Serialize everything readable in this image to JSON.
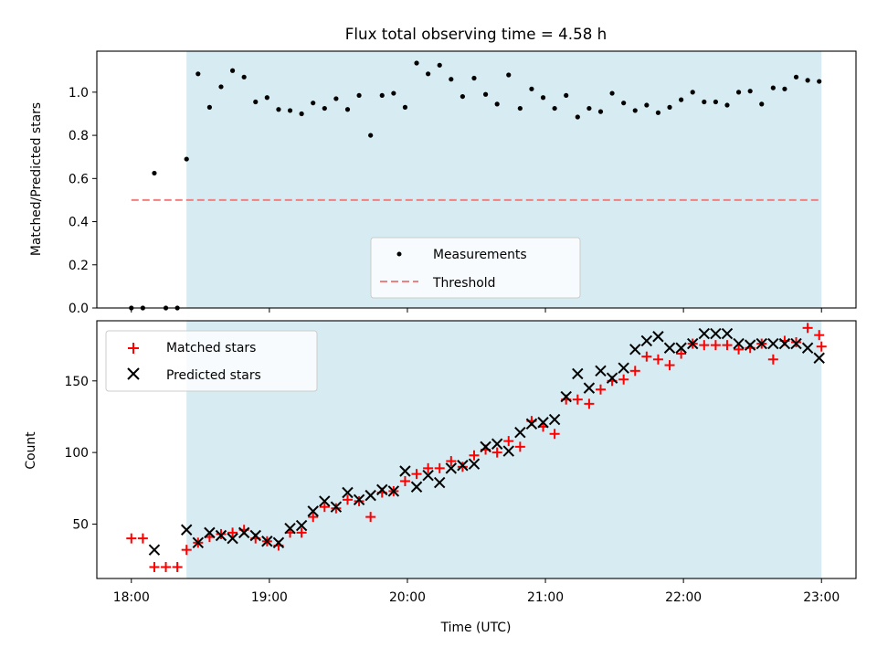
{
  "chart_data": [
    {
      "panel": "top",
      "type": "scatter",
      "title": "Flux total observing time = 4.58 h",
      "xlabel": "",
      "ylabel": "Matched/Predicted stars",
      "ylim": [
        0,
        1.19
      ],
      "yticks": [
        "0.0",
        "0.2",
        "0.4",
        "0.6",
        "0.8",
        "1.0"
      ],
      "legend": {
        "position": "lower-center",
        "entries": [
          "Measurements",
          "Threshold"
        ]
      },
      "shaded_interval": [
        "18:24",
        "23:00"
      ],
      "shade_color": "#add8e6",
      "threshold": {
        "name": "Threshold",
        "y": 0.5,
        "x_range": [
          "18:00",
          "23:00"
        ],
        "color": "#f08080"
      },
      "series": [
        {
          "name": "Measurements",
          "color": "#000000",
          "points": [
            [
              "18:00",
              0.0
            ],
            [
              "18:05",
              0.0
            ],
            [
              "18:10",
              0.625
            ],
            [
              "18:15",
              0.0
            ],
            [
              "18:20",
              0.0
            ],
            [
              "18:24",
              0.69
            ],
            [
              "18:29",
              1.085
            ],
            [
              "18:34",
              0.93
            ],
            [
              "18:39",
              1.025
            ],
            [
              "18:44",
              1.1
            ],
            [
              "18:49",
              1.07
            ],
            [
              "18:54",
              0.955
            ],
            [
              "18:59",
              0.975
            ],
            [
              "19:04",
              0.92
            ],
            [
              "19:09",
              0.915
            ],
            [
              "19:14",
              0.9
            ],
            [
              "19:19",
              0.95
            ],
            [
              "19:24",
              0.925
            ],
            [
              "19:29",
              0.97
            ],
            [
              "19:34",
              0.92
            ],
            [
              "19:39",
              0.985
            ],
            [
              "19:44",
              0.8
            ],
            [
              "19:49",
              0.985
            ],
            [
              "19:54",
              0.995
            ],
            [
              "19:59",
              0.93
            ],
            [
              "20:04",
              1.135
            ],
            [
              "20:09",
              1.085
            ],
            [
              "20:14",
              1.125
            ],
            [
              "20:19",
              1.06
            ],
            [
              "20:24",
              0.98
            ],
            [
              "20:29",
              1.065
            ],
            [
              "20:34",
              0.99
            ],
            [
              "20:39",
              0.945
            ],
            [
              "20:44",
              1.08
            ],
            [
              "20:49",
              0.925
            ],
            [
              "20:54",
              1.015
            ],
            [
              "20:59",
              0.975
            ],
            [
              "21:04",
              0.925
            ],
            [
              "21:09",
              0.985
            ],
            [
              "21:14",
              0.885
            ],
            [
              "21:19",
              0.925
            ],
            [
              "21:24",
              0.91
            ],
            [
              "21:29",
              0.995
            ],
            [
              "21:34",
              0.95
            ],
            [
              "21:39",
              0.915
            ],
            [
              "21:44",
              0.94
            ],
            [
              "21:49",
              0.905
            ],
            [
              "21:54",
              0.93
            ],
            [
              "21:59",
              0.965
            ],
            [
              "22:04",
              1.0
            ],
            [
              "22:09",
              0.955
            ],
            [
              "22:14",
              0.955
            ],
            [
              "22:19",
              0.94
            ],
            [
              "22:24",
              1.0
            ],
            [
              "22:29",
              1.005
            ],
            [
              "22:34",
              0.945
            ],
            [
              "22:39",
              1.02
            ],
            [
              "22:44",
              1.015
            ],
            [
              "22:49",
              1.07
            ],
            [
              "22:54",
              1.055
            ],
            [
              "22:59",
              1.05
            ]
          ]
        }
      ]
    },
    {
      "panel": "bottom",
      "type": "scatter",
      "title": "",
      "xlabel": "Time (UTC)",
      "ylabel": "Count",
      "ylim": [
        12,
        192
      ],
      "yticks": [
        "50",
        "100",
        "150"
      ],
      "xticks": [
        "18:00",
        "19:00",
        "20:00",
        "21:00",
        "22:00",
        "23:00"
      ],
      "xlim": [
        "17:45",
        "23:15"
      ],
      "legend": {
        "position": "upper-left",
        "entries": [
          "Matched stars",
          "Predicted stars"
        ]
      },
      "shaded_interval": [
        "18:24",
        "23:00"
      ],
      "shade_color": "#add8e6",
      "series": [
        {
          "name": "Matched stars",
          "marker": "+",
          "color": "#ff0000",
          "points": [
            [
              "18:00",
              40
            ],
            [
              "18:05",
              40
            ],
            [
              "18:10",
              20
            ],
            [
              "18:15",
              20
            ],
            [
              "18:20",
              20
            ],
            [
              "18:24",
              32
            ],
            [
              "18:29",
              37
            ],
            [
              "18:34",
              41
            ],
            [
              "18:39",
              43
            ],
            [
              "18:44",
              44
            ],
            [
              "18:49",
              46
            ],
            [
              "18:54",
              40
            ],
            [
              "18:59",
              38
            ],
            [
              "19:04",
              35
            ],
            [
              "19:09",
              44
            ],
            [
              "19:14",
              44
            ],
            [
              "19:19",
              55
            ],
            [
              "19:24",
              62
            ],
            [
              "19:29",
              61
            ],
            [
              "19:34",
              67
            ],
            [
              "19:39",
              66
            ],
            [
              "19:44",
              55
            ],
            [
              "19:49",
              72
            ],
            [
              "19:54",
              73
            ],
            [
              "19:59",
              80
            ],
            [
              "20:04",
              85
            ],
            [
              "20:09",
              89
            ],
            [
              "20:14",
              89
            ],
            [
              "20:19",
              94
            ],
            [
              "20:24",
              90
            ],
            [
              "20:29",
              98
            ],
            [
              "20:34",
              102
            ],
            [
              "20:39",
              100
            ],
            [
              "20:44",
              108
            ],
            [
              "20:49",
              104
            ],
            [
              "20:54",
              122
            ],
            [
              "20:59",
              118
            ],
            [
              "21:04",
              113
            ],
            [
              "21:09",
              137
            ],
            [
              "21:14",
              137
            ],
            [
              "21:19",
              134
            ],
            [
              "21:24",
              144
            ],
            [
              "21:29",
              150
            ],
            [
              "21:34",
              151
            ],
            [
              "21:39",
              157
            ],
            [
              "21:44",
              167
            ],
            [
              "21:49",
              165
            ],
            [
              "21:54",
              161
            ],
            [
              "21:59",
              169
            ],
            [
              "22:04",
              176
            ],
            [
              "22:09",
              175
            ],
            [
              "22:14",
              175
            ],
            [
              "22:19",
              175
            ],
            [
              "22:24",
              172
            ],
            [
              "22:29",
              173
            ],
            [
              "22:34",
              176
            ],
            [
              "22:39",
              165
            ],
            [
              "22:44",
              178
            ],
            [
              "22:49",
              177
            ],
            [
              "22:54",
              187
            ],
            [
              "22:59",
              182
            ],
            [
              "23:00",
              174
            ]
          ]
        },
        {
          "name": "Predicted stars",
          "marker": "x",
          "color": "#000000",
          "points": [
            [
              "18:10",
              32
            ],
            [
              "18:24",
              46
            ],
            [
              "18:29",
              37
            ],
            [
              "18:34",
              44
            ],
            [
              "18:39",
              42
            ],
            [
              "18:44",
              40
            ],
            [
              "18:49",
              44
            ],
            [
              "18:54",
              42
            ],
            [
              "18:59",
              38
            ],
            [
              "19:04",
              37
            ],
            [
              "19:09",
              47
            ],
            [
              "19:14",
              49
            ],
            [
              "19:19",
              59
            ],
            [
              "19:24",
              66
            ],
            [
              "19:29",
              62
            ],
            [
              "19:34",
              72
            ],
            [
              "19:39",
              67
            ],
            [
              "19:44",
              70
            ],
            [
              "19:49",
              74
            ],
            [
              "19:54",
              73
            ],
            [
              "19:59",
              87
            ],
            [
              "20:04",
              76
            ],
            [
              "20:09",
              84
            ],
            [
              "20:14",
              79
            ],
            [
              "20:19",
              89
            ],
            [
              "20:24",
              91
            ],
            [
              "20:29",
              92
            ],
            [
              "20:34",
              104
            ],
            [
              "20:39",
              106
            ],
            [
              "20:44",
              101
            ],
            [
              "20:49",
              114
            ],
            [
              "20:54",
              120
            ],
            [
              "20:59",
              121
            ],
            [
              "21:04",
              123
            ],
            [
              "21:09",
              139
            ],
            [
              "21:14",
              155
            ],
            [
              "21:19",
              145
            ],
            [
              "21:24",
              157
            ],
            [
              "21:29",
              152
            ],
            [
              "21:34",
              159
            ],
            [
              "21:39",
              172
            ],
            [
              "21:44",
              178
            ],
            [
              "21:49",
              181
            ],
            [
              "21:54",
              173
            ],
            [
              "21:59",
              173
            ],
            [
              "22:04",
              176
            ],
            [
              "22:09",
              183
            ],
            [
              "22:14",
              183
            ],
            [
              "22:19",
              183
            ],
            [
              "22:24",
              176
            ],
            [
              "22:29",
              175
            ],
            [
              "22:34",
              176
            ],
            [
              "22:39",
              176
            ],
            [
              "22:44",
              176
            ],
            [
              "22:49",
              176
            ],
            [
              "22:54",
              173
            ],
            [
              "22:59",
              166
            ]
          ]
        }
      ]
    }
  ]
}
